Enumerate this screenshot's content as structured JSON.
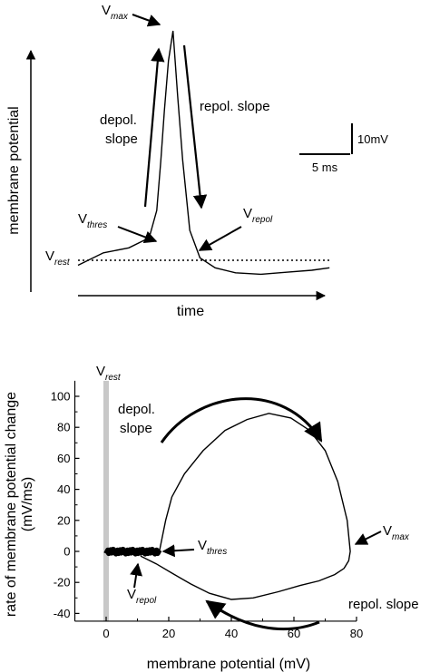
{
  "chart_data": [
    {
      "type": "line",
      "panel": "top",
      "xlabel": "time",
      "ylabel": "membrane potential",
      "scale_bars": {
        "x": "5 ms",
        "y": "10mV"
      },
      "annotations": {
        "vmax": {
          "main": "V",
          "sub": "max"
        },
        "vthres": {
          "main": "V",
          "sub": "thres"
        },
        "vrepol": {
          "main": "V",
          "sub": "repol"
        },
        "vrest": {
          "main": "V",
          "sub": "rest"
        },
        "depol_line1": "depol.",
        "depol_line2": "slope",
        "repol": "repol. slope"
      },
      "series": [
        {
          "units": [
            "ms",
            "mV"
          ],
          "x": [
            0,
            5,
            10,
            14,
            15.5,
            16.3,
            17.0,
            17.8,
            18.7,
            19.6,
            20.6,
            22,
            24,
            27,
            31,
            36,
            41,
            46,
            49.5
          ],
          "values": [
            -1,
            1.5,
            2.5,
            4.5,
            10,
            20,
            30,
            40,
            46,
            33,
            20,
            6,
            0.5,
            -1.5,
            -2.5,
            -2.8,
            -2.4,
            -2,
            -1.5
          ]
        }
      ]
    },
    {
      "type": "line",
      "panel": "bottom",
      "xlabel": "membrane potential (mV)",
      "ylabel_line1": "rate of membrane potential change",
      "ylabel_line2": "(mV/ms)",
      "xticks": [
        "0",
        "20",
        "40",
        "60",
        "80"
      ],
      "yticks": [
        "-40",
        "-20",
        "0",
        "20",
        "40",
        "60",
        "80",
        "100"
      ],
      "xlim": [
        -10,
        80
      ],
      "ylim": [
        -45,
        110
      ],
      "vrest_band": 0,
      "annotations": {
        "vrest": {
          "main": "V",
          "sub": "rest"
        },
        "vthres": {
          "main": "V",
          "sub": "thres"
        },
        "vrepol": {
          "main": "V",
          "sub": "repol"
        },
        "vmax": {
          "main": "V",
          "sub": "max"
        },
        "depol_line1": "depol.",
        "depol_line2": "slope",
        "repol": "repol. slope"
      },
      "series": [
        {
          "x": [
            17,
            17.5,
            19,
            21,
            25,
            31,
            38,
            45,
            52,
            59,
            65,
            70,
            74,
            77,
            78,
            77.5,
            76,
            73,
            68,
            62,
            55,
            47,
            40,
            33,
            27,
            21,
            16,
            11
          ],
          "values": [
            0,
            5,
            20,
            35,
            50,
            65,
            78,
            85,
            89,
            86,
            78,
            65,
            45,
            20,
            0,
            -6,
            -11,
            -15,
            -19,
            -22,
            -26,
            -30,
            -31,
            -27,
            -21,
            -14,
            -8,
            -3
          ]
        }
      ]
    }
  ]
}
